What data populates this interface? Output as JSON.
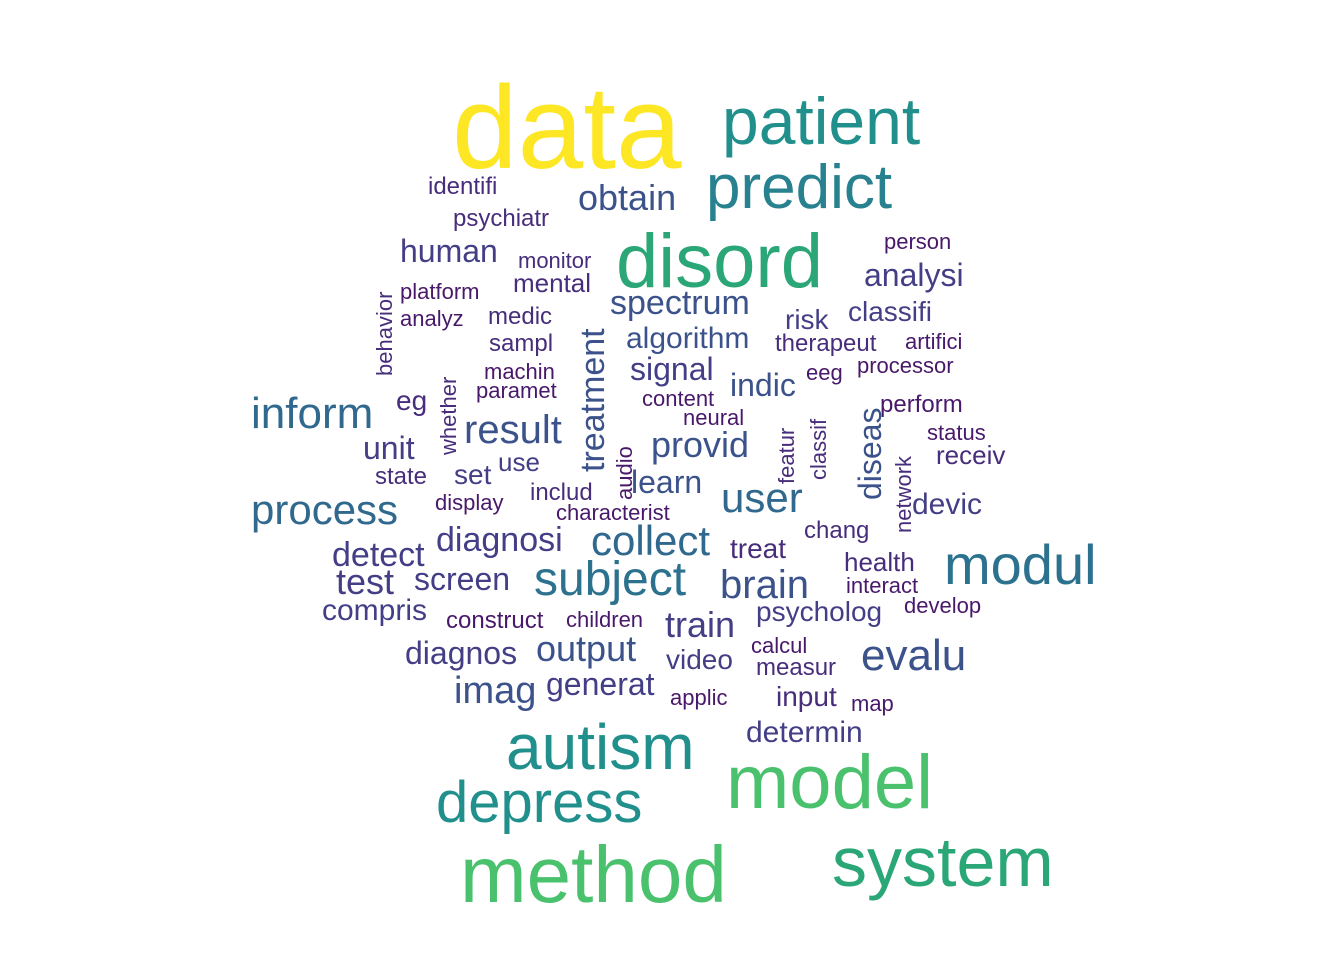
{
  "palette": {
    "yellow": "#fde725",
    "light_green": "#4ac16d",
    "green": "#2aa677",
    "teal": "#21908d",
    "teal_dark": "#27818e",
    "blue_green": "#2c728e",
    "blue_teal": "#31688e",
    "blue": "#3b528b",
    "indigo": "#433e85",
    "indigo_dark": "#472d7b",
    "purple": "#48186a",
    "purple_dark": "#440154"
  },
  "words": [
    {
      "text": "data",
      "color": "#fde725"
    },
    {
      "text": "patient",
      "color": "#21908d"
    },
    {
      "text": "predict",
      "color": "#27818e"
    },
    {
      "text": "identifi",
      "color": "#472d7b"
    },
    {
      "text": "obtain",
      "color": "#3b528b"
    },
    {
      "text": "psychiatr",
      "color": "#472d7b"
    },
    {
      "text": "disord",
      "color": "#2aa677"
    },
    {
      "text": "person",
      "color": "#48186a"
    },
    {
      "text": "human",
      "color": "#433e85"
    },
    {
      "text": "monitor",
      "color": "#472d7b"
    },
    {
      "text": "analysi",
      "color": "#433e85"
    },
    {
      "text": "mental",
      "color": "#472d7b"
    },
    {
      "text": "behavior",
      "color": "#472d7b"
    },
    {
      "text": "platform",
      "color": "#48186a"
    },
    {
      "text": "spectrum",
      "color": "#3b528b"
    },
    {
      "text": "classifi",
      "color": "#433e85"
    },
    {
      "text": "analyz",
      "color": "#48186a"
    },
    {
      "text": "medic",
      "color": "#472d7b"
    },
    {
      "text": "risk",
      "color": "#433e85"
    },
    {
      "text": "treatment",
      "color": "#3b528b"
    },
    {
      "text": "algorithm",
      "color": "#3b528b"
    },
    {
      "text": "sampl",
      "color": "#472d7b"
    },
    {
      "text": "therapeut",
      "color": "#472d7b"
    },
    {
      "text": "artifici",
      "color": "#48186a"
    },
    {
      "text": "whether",
      "color": "#472d7b"
    },
    {
      "text": "machin",
      "color": "#48186a"
    },
    {
      "text": "signal",
      "color": "#433e85"
    },
    {
      "text": "processor",
      "color": "#48186a"
    },
    {
      "text": "eeg",
      "color": "#48186a"
    },
    {
      "text": "paramet",
      "color": "#48186a"
    },
    {
      "text": "indic",
      "color": "#3b528b"
    },
    {
      "text": "content",
      "color": "#48186a"
    },
    {
      "text": "diseas",
      "color": "#3b528b"
    },
    {
      "text": "perform",
      "color": "#48186a"
    },
    {
      "text": "inform",
      "color": "#31688e"
    },
    {
      "text": "eg",
      "color": "#472d7b"
    },
    {
      "text": "neural",
      "color": "#48186a"
    },
    {
      "text": "featur",
      "color": "#472d7b"
    },
    {
      "text": "classif",
      "color": "#472d7b"
    },
    {
      "text": "status",
      "color": "#48186a"
    },
    {
      "text": "result",
      "color": "#3b528b"
    },
    {
      "text": "unit",
      "color": "#433e85"
    },
    {
      "text": "provid",
      "color": "#3b528b"
    },
    {
      "text": "audio",
      "color": "#48186a"
    },
    {
      "text": "network",
      "color": "#472d7b"
    },
    {
      "text": "receiv",
      "color": "#472d7b"
    },
    {
      "text": "state",
      "color": "#472d7b"
    },
    {
      "text": "set",
      "color": "#433e85"
    },
    {
      "text": "use",
      "color": "#433e85"
    },
    {
      "text": "learn",
      "color": "#3b528b"
    },
    {
      "text": "user",
      "color": "#31688e"
    },
    {
      "text": "includ",
      "color": "#472d7b"
    },
    {
      "text": "display",
      "color": "#48186a"
    },
    {
      "text": "process",
      "color": "#31688e"
    },
    {
      "text": "devic",
      "color": "#433e85"
    },
    {
      "text": "characterist",
      "color": "#48186a"
    },
    {
      "text": "chang",
      "color": "#472d7b"
    },
    {
      "text": "diagnosi",
      "color": "#433e85"
    },
    {
      "text": "collect",
      "color": "#31688e"
    },
    {
      "text": "detect",
      "color": "#433e85"
    },
    {
      "text": "treat",
      "color": "#472d7b"
    },
    {
      "text": "modul",
      "color": "#2c728e"
    },
    {
      "text": "health",
      "color": "#472d7b"
    },
    {
      "text": "subject",
      "color": "#2c728e"
    },
    {
      "text": "test",
      "color": "#433e85"
    },
    {
      "text": "screen",
      "color": "#433e85"
    },
    {
      "text": "brain",
      "color": "#3b528b"
    },
    {
      "text": "interact",
      "color": "#48186a"
    },
    {
      "text": "compris",
      "color": "#433e85"
    },
    {
      "text": "develop",
      "color": "#48186a"
    },
    {
      "text": "construct",
      "color": "#48186a"
    },
    {
      "text": "children",
      "color": "#48186a"
    },
    {
      "text": "psycholog",
      "color": "#433e85"
    },
    {
      "text": "train",
      "color": "#433e85"
    },
    {
      "text": "calcul",
      "color": "#48186a"
    },
    {
      "text": "diagnos",
      "color": "#433e85"
    },
    {
      "text": "output",
      "color": "#3b528b"
    },
    {
      "text": "evalu",
      "color": "#3b528b"
    },
    {
      "text": "video",
      "color": "#433e85"
    },
    {
      "text": "measur",
      "color": "#472d7b"
    },
    {
      "text": "imag",
      "color": "#3b528b"
    },
    {
      "text": "generat",
      "color": "#433e85"
    },
    {
      "text": "applic",
      "color": "#48186a"
    },
    {
      "text": "input",
      "color": "#472d7b"
    },
    {
      "text": "map",
      "color": "#48186a"
    },
    {
      "text": "determin",
      "color": "#433e85"
    },
    {
      "text": "autism",
      "color": "#21908d"
    },
    {
      "text": "model",
      "color": "#4ac16d"
    },
    {
      "text": "depress",
      "color": "#21908d"
    },
    {
      "text": "method",
      "color": "#4ac16d"
    },
    {
      "text": "system",
      "color": "#2aa677"
    }
  ]
}
